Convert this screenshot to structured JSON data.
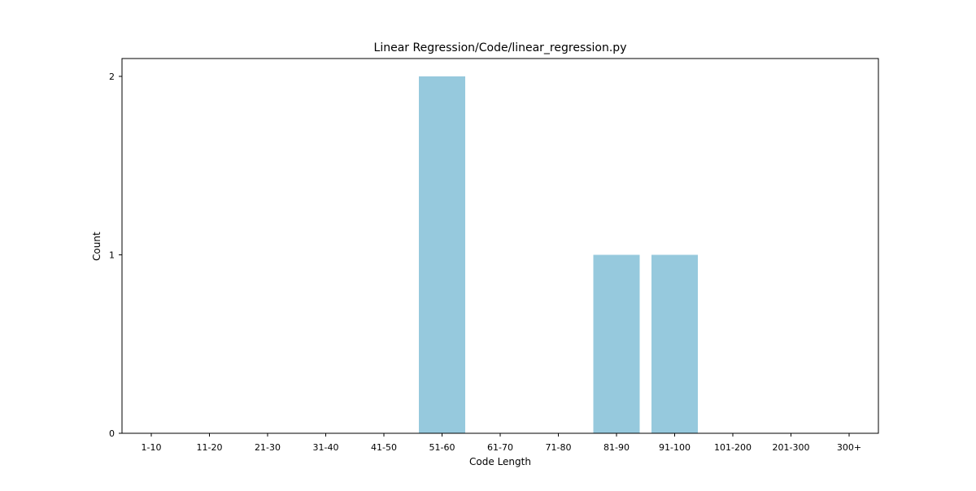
{
  "chart_data": {
    "type": "bar",
    "title": "Linear Regression/Code/linear_regression.py",
    "xlabel": "Code Length",
    "ylabel": "Count",
    "categories": [
      "1-10",
      "11-20",
      "21-30",
      "31-40",
      "41-50",
      "51-60",
      "61-70",
      "71-80",
      "81-90",
      "91-100",
      "101-200",
      "201-300",
      "300+"
    ],
    "values": [
      0,
      0,
      0,
      0,
      0,
      2,
      0,
      0,
      1,
      1,
      0,
      0,
      0
    ],
    "ylim": [
      0,
      2.1
    ],
    "yticks": [
      0,
      1,
      2
    ],
    "grid": false,
    "legend": "none",
    "bar_color": "#96c9dd"
  }
}
